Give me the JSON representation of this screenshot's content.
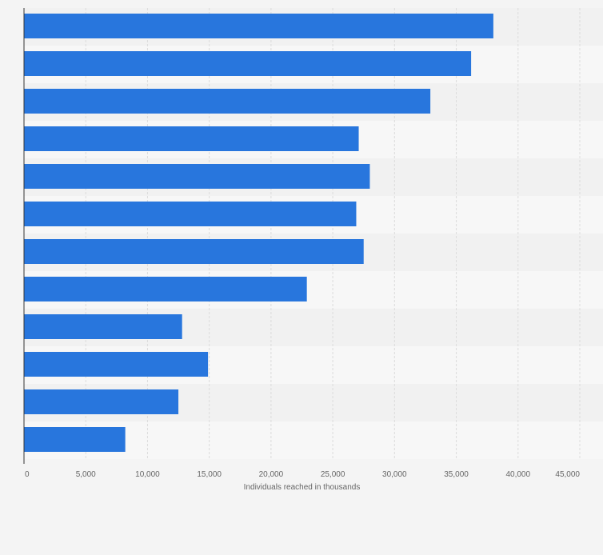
{
  "chart_data": {
    "type": "bar",
    "orientation": "horizontal",
    "categories": [
      "",
      "",
      "",
      "",
      "",
      "",
      "",
      "",
      "",
      "",
      "",
      ""
    ],
    "values": [
      38000,
      36200,
      32900,
      27100,
      28000,
      26900,
      27500,
      22900,
      12800,
      14900,
      12500,
      8200
    ],
    "xlabel": "Individuals reached in thousands",
    "xlim": [
      0,
      45000
    ],
    "xticks": [
      0,
      5000,
      10000,
      15000,
      20000,
      25000,
      30000,
      35000,
      40000,
      45000
    ],
    "xtick_labels": [
      "0",
      "5,000",
      "10,000",
      "15,000",
      "20,000",
      "25,000",
      "30,000",
      "35,000",
      "40,000",
      "45,000"
    ],
    "grid": true,
    "legend": "none"
  },
  "colors": {
    "bar": "#2876dd",
    "page_background": "#f4f4f4",
    "band_light": "#f7f7f7",
    "band_dark": "#f1f1f1",
    "grid": "#dcdcdc",
    "axis": "#333333",
    "tick_text": "#666666"
  }
}
